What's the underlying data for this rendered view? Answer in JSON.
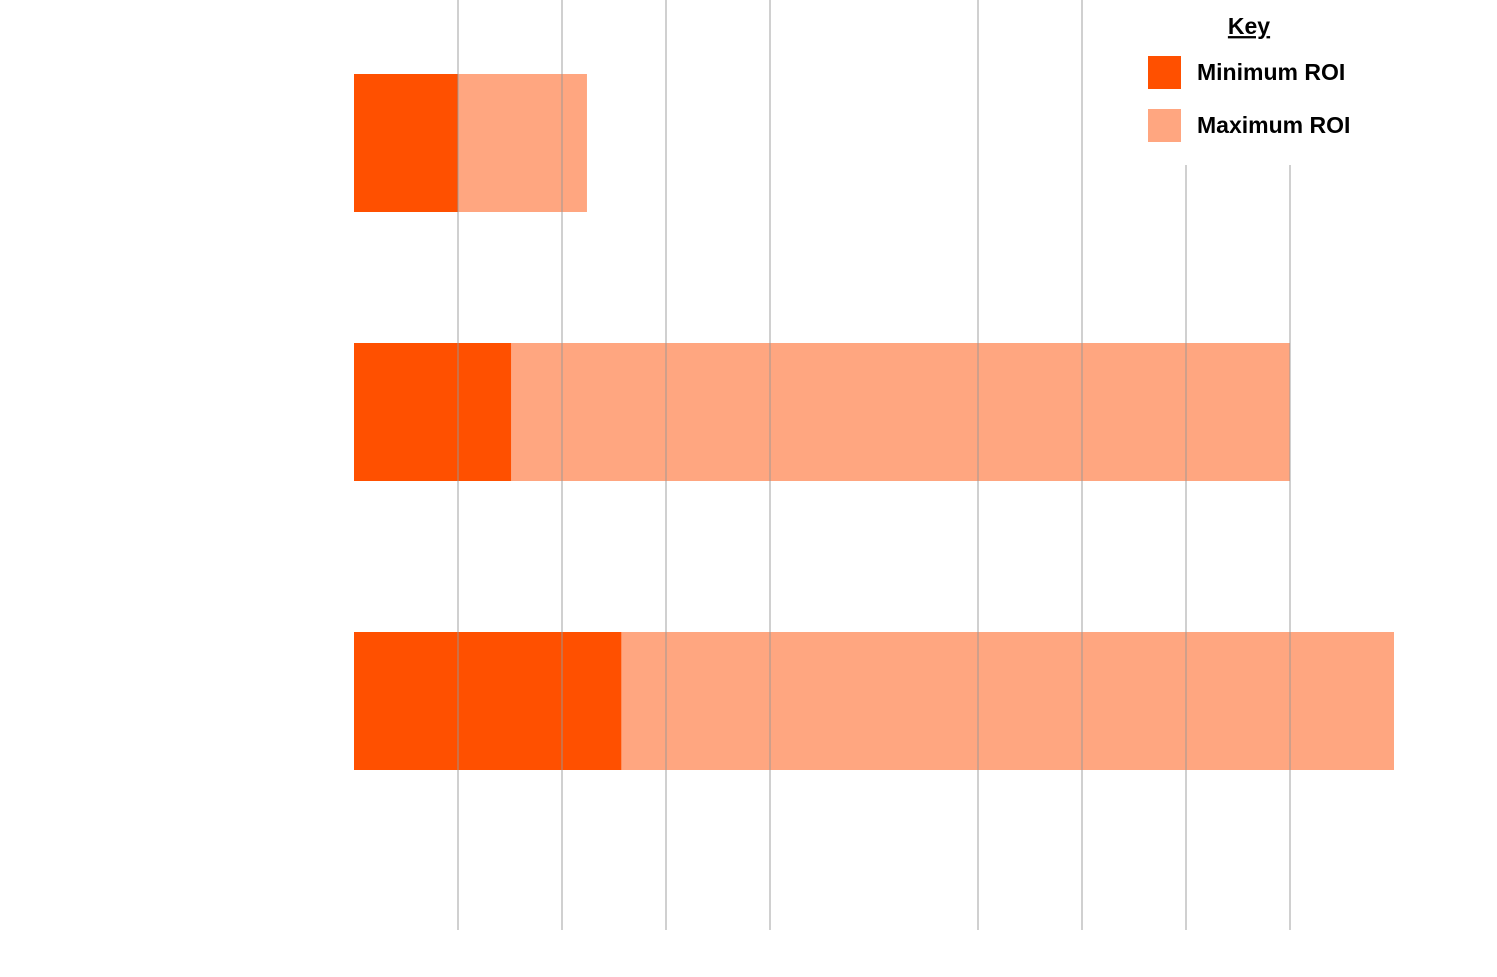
{
  "chart_data": {
    "type": "bar",
    "orientation": "horizontal",
    "overlap": true,
    "legend_title": "Key",
    "categories": [
      null,
      null,
      null
    ],
    "series": [
      {
        "name": "Minimum ROI",
        "color": "#ff5000",
        "values": [
          1.0,
          1.51,
          2.57
        ]
      },
      {
        "name": "Maximum ROI",
        "color": "#ffa680",
        "values": [
          2.24,
          9.0,
          10.0
        ]
      }
    ],
    "xlim": [
      0,
      10
    ],
    "xticks": [
      1,
      2,
      3,
      4,
      6,
      7,
      8,
      9
    ],
    "grid": true,
    "legend": "top-right"
  }
}
